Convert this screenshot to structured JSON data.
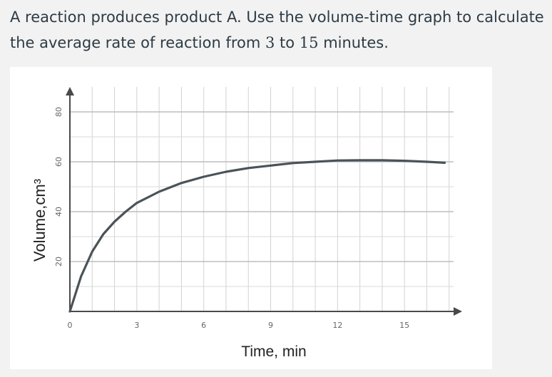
{
  "question": {
    "part1": "A reaction produces product A. Use the volume-time graph to calculate the average rate of reaction from ",
    "t_start": "3",
    "part2": " to ",
    "t_end": "15",
    "part3": " minutes."
  },
  "chart_data": {
    "type": "line",
    "title": "",
    "xlabel": "Time, min",
    "ylabel": "Volume,cm³",
    "xlim": [
      0,
      17.2
    ],
    "ylim": [
      0,
      90
    ],
    "x_ticks": [
      0,
      3,
      6,
      9,
      12,
      15
    ],
    "y_ticks": [
      20,
      40,
      60,
      80
    ],
    "grid": true,
    "series": [
      {
        "color": "#4a5358",
        "points": [
          [
            0,
            0
          ],
          [
            0.5,
            14
          ],
          [
            1,
            24
          ],
          [
            1.5,
            31
          ],
          [
            2,
            36
          ],
          [
            2.5,
            40
          ],
          [
            3,
            43.5
          ],
          [
            4,
            48
          ],
          [
            5,
            51.5
          ],
          [
            6,
            54
          ],
          [
            7,
            56
          ],
          [
            8,
            57.5
          ],
          [
            9,
            58.5
          ],
          [
            10,
            59.5
          ],
          [
            11,
            60
          ],
          [
            12,
            60.5
          ],
          [
            13,
            60.6
          ],
          [
            14,
            60.6
          ],
          [
            15,
            60.4
          ],
          [
            16,
            60
          ],
          [
            16.8,
            59.6
          ]
        ]
      }
    ]
  }
}
